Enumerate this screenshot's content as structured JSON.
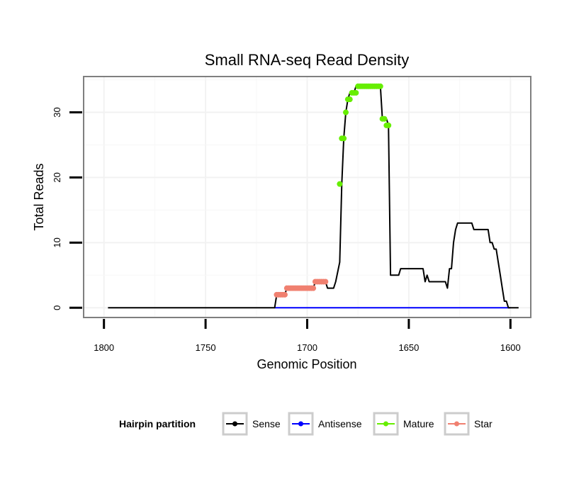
{
  "chart_data": {
    "type": "line",
    "title": "Small RNA-seq Read Density",
    "xlabel": "Genomic Position",
    "ylabel": "Total Reads",
    "xlim": [
      1810,
      1590
    ],
    "ylim": [
      -1.5,
      35.5
    ],
    "xticks": [
      1800,
      1750,
      1700,
      1650,
      1600
    ],
    "yticks": [
      0,
      10,
      20,
      30
    ],
    "grid": true,
    "legend": {
      "title": "Hairpin partition",
      "position": "bottom",
      "entries": [
        "Sense",
        "Antisense",
        "Mature",
        "Star"
      ]
    },
    "series": [
      {
        "name": "Sense",
        "color": "#000000",
        "x": [
          1798,
          1716,
          1715,
          1711,
          1710,
          1697,
          1696,
          1691,
          1690,
          1687,
          1686,
          1684,
          1683,
          1682,
          1681,
          1680,
          1679,
          1678,
          1677,
          1676,
          1675,
          1672,
          1671,
          1664,
          1663,
          1661,
          1660,
          1659,
          1658,
          1655,
          1654,
          1643,
          1642,
          1641,
          1640,
          1632,
          1631,
          1630,
          1629,
          1628,
          1627,
          1626,
          1624,
          1623,
          1619,
          1618,
          1611,
          1610,
          1609,
          1608,
          1607,
          1605,
          1604,
          1603,
          1602,
          1601,
          1600,
          1596
        ],
        "y": [
          0,
          0,
          2,
          2,
          3,
          3,
          4,
          4,
          3,
          3,
          4,
          7,
          19,
          26,
          30,
          32,
          33,
          33,
          33,
          34,
          34,
          34,
          34,
          34,
          29,
          29,
          28,
          5,
          5,
          5,
          6,
          6,
          4,
          5,
          4,
          4,
          3,
          6,
          6,
          10,
          12,
          13,
          13,
          13,
          13,
          12,
          12,
          10,
          10,
          9,
          9,
          5,
          3,
          1,
          1,
          0,
          0,
          0
        ]
      },
      {
        "name": "Antisense",
        "color": "#0000ff",
        "x": [
          1716,
          1600
        ],
        "y": [
          0,
          0
        ]
      },
      {
        "name": "Mature",
        "color": "#66ee00",
        "x": [
          1684,
          1683,
          1682,
          1681,
          1680,
          1679,
          1678,
          1677,
          1676,
          1675,
          1674,
          1673,
          1672,
          1671,
          1670,
          1669,
          1668,
          1667,
          1666,
          1665,
          1664,
          1663,
          1662,
          1661,
          1660
        ],
        "y": [
          19,
          26,
          26,
          30,
          32,
          32,
          33,
          33,
          33,
          34,
          34,
          34,
          34,
          34,
          34,
          34,
          34,
          34,
          34,
          34,
          34,
          29,
          29,
          28,
          28
        ]
      },
      {
        "name": "Star",
        "color": "#f08070",
        "x": [
          1715,
          1714,
          1713,
          1712,
          1711,
          1710,
          1709,
          1708,
          1707,
          1706,
          1705,
          1704,
          1703,
          1702,
          1701,
          1700,
          1699,
          1698,
          1697,
          1696,
          1695,
          1694,
          1693,
          1692,
          1691
        ],
        "y": [
          2,
          2,
          2,
          2,
          2,
          3,
          3,
          3,
          3,
          3,
          3,
          3,
          3,
          3,
          3,
          3,
          3,
          3,
          3,
          4,
          4,
          4,
          4,
          4,
          4
        ]
      }
    ]
  }
}
